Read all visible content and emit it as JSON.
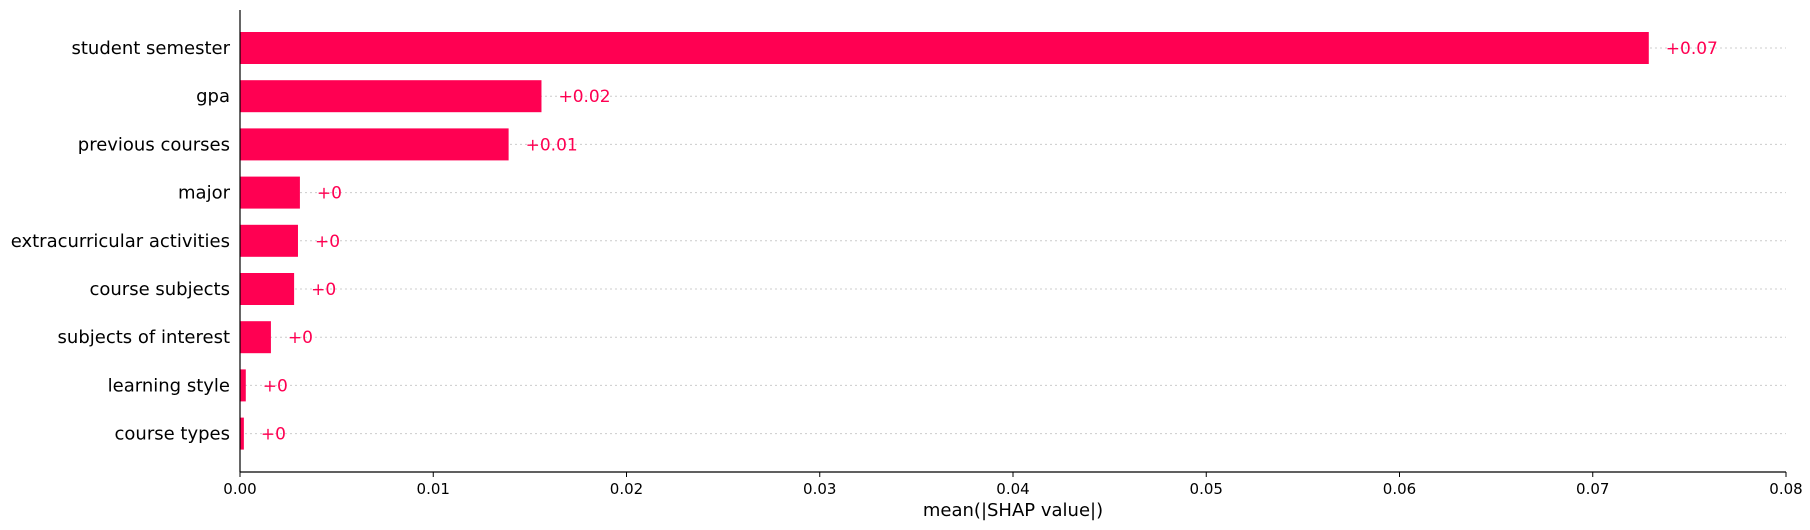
{
  "chart_data": {
    "type": "bar",
    "orientation": "horizontal",
    "categories": [
      "student semester",
      "gpa",
      "previous courses",
      "major",
      "extracurricular activities",
      "course subjects",
      "subjects of interest",
      "learning style",
      "course types"
    ],
    "values": [
      0.0729,
      0.0156,
      0.0139,
      0.0031,
      0.003,
      0.0028,
      0.0016,
      0.0003,
      0.0002
    ],
    "value_labels": [
      "+0.07",
      "+0.02",
      "+0.01",
      "+0",
      "+0",
      "+0",
      "+0",
      "+0",
      "+0"
    ],
    "xlabel": "mean(|SHAP value|)",
    "ylabel": "",
    "title": "",
    "xlim": [
      0.0,
      0.08
    ],
    "xticks": [
      0.0,
      0.01,
      0.02,
      0.03,
      0.04,
      0.05,
      0.06,
      0.07,
      0.08
    ],
    "xtick_labels": [
      "0.00",
      "0.01",
      "0.02",
      "0.03",
      "0.04",
      "0.05",
      "0.06",
      "0.07",
      "0.08"
    ],
    "grid": "horizontal dotted",
    "bar_color": "#ff0052",
    "label_color": "#ff0052",
    "gridline_color": "#cccccc"
  }
}
